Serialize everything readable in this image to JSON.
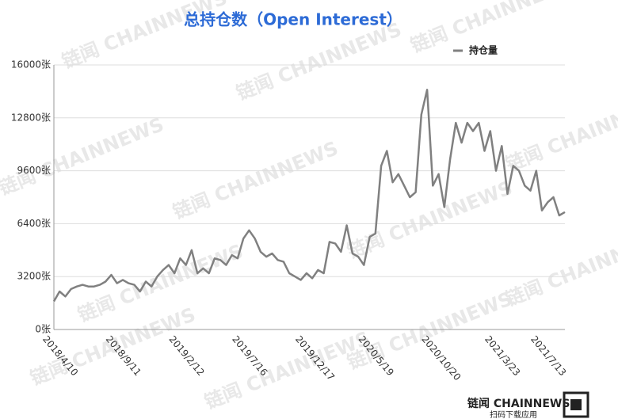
{
  "chart_data": {
    "type": "line",
    "title": "总持仓数（Open Interest）",
    "watermark": "链闻 CHAINNEWS",
    "brand": "链闻 CHAINNEWS",
    "brand_caption": "扫码下载应用",
    "categories": [
      "2018/4/10",
      null,
      null,
      null,
      null,
      null,
      null,
      null,
      null,
      null,
      null,
      "2018/9/11",
      null,
      null,
      null,
      null,
      null,
      null,
      null,
      null,
      null,
      null,
      "2019/2/12",
      null,
      null,
      null,
      null,
      null,
      null,
      null,
      null,
      null,
      null,
      "2019/7/16",
      null,
      null,
      null,
      null,
      null,
      null,
      null,
      null,
      null,
      null,
      "2019/12/17",
      null,
      null,
      null,
      null,
      null,
      null,
      null,
      null,
      null,
      null,
      "2020/5/19",
      null,
      null,
      null,
      null,
      null,
      null,
      null,
      null,
      null,
      null,
      "2020/10/20",
      null,
      null,
      null,
      null,
      null,
      null,
      null,
      null,
      null,
      null,
      "2021/3/23",
      null,
      null,
      null,
      null,
      null,
      null,
      null,
      "2021/7/13",
      null,
      null,
      null,
      null
    ],
    "series": [
      {
        "name": "持仓量",
        "color": "#808080",
        "values": [
          1700,
          2300,
          2000,
          2450,
          2600,
          2700,
          2600,
          2600,
          2700,
          2900,
          3300,
          2800,
          3000,
          2800,
          2700,
          2300,
          2900,
          2600,
          3200,
          3600,
          3900,
          3400,
          4300,
          3900,
          4800,
          3400,
          3700,
          3400,
          4300,
          4200,
          3900,
          4500,
          4300,
          5500,
          6000,
          5500,
          4700,
          4400,
          4600,
          4200,
          4100,
          3400,
          3200,
          3000,
          3400,
          3100,
          3600,
          3400,
          5300,
          5200,
          4700,
          6300,
          4600,
          4400,
          3900,
          5600,
          5800,
          9900,
          10800,
          8900,
          9400,
          8700,
          8000,
          8300,
          13000,
          14500,
          8700,
          9400,
          7400,
          10300,
          12500,
          11300,
          12500,
          12000,
          12500,
          10800,
          12000,
          9600,
          11100,
          8200,
          9900,
          9600,
          8700,
          8400,
          9600,
          7200,
          7700,
          8000,
          6900,
          7100
        ]
      }
    ],
    "ylim": [
      0,
      16000
    ],
    "yticks": [
      {
        "value": 0,
        "label": "0张"
      },
      {
        "value": 3200,
        "label": "3200张"
      },
      {
        "value": 6400,
        "label": "6400张"
      },
      {
        "value": 9600,
        "label": "9600张"
      },
      {
        "value": 12800,
        "label": "12800张"
      },
      {
        "value": 16000,
        "label": "16000张"
      }
    ],
    "grid": true,
    "legend": "top-right"
  }
}
